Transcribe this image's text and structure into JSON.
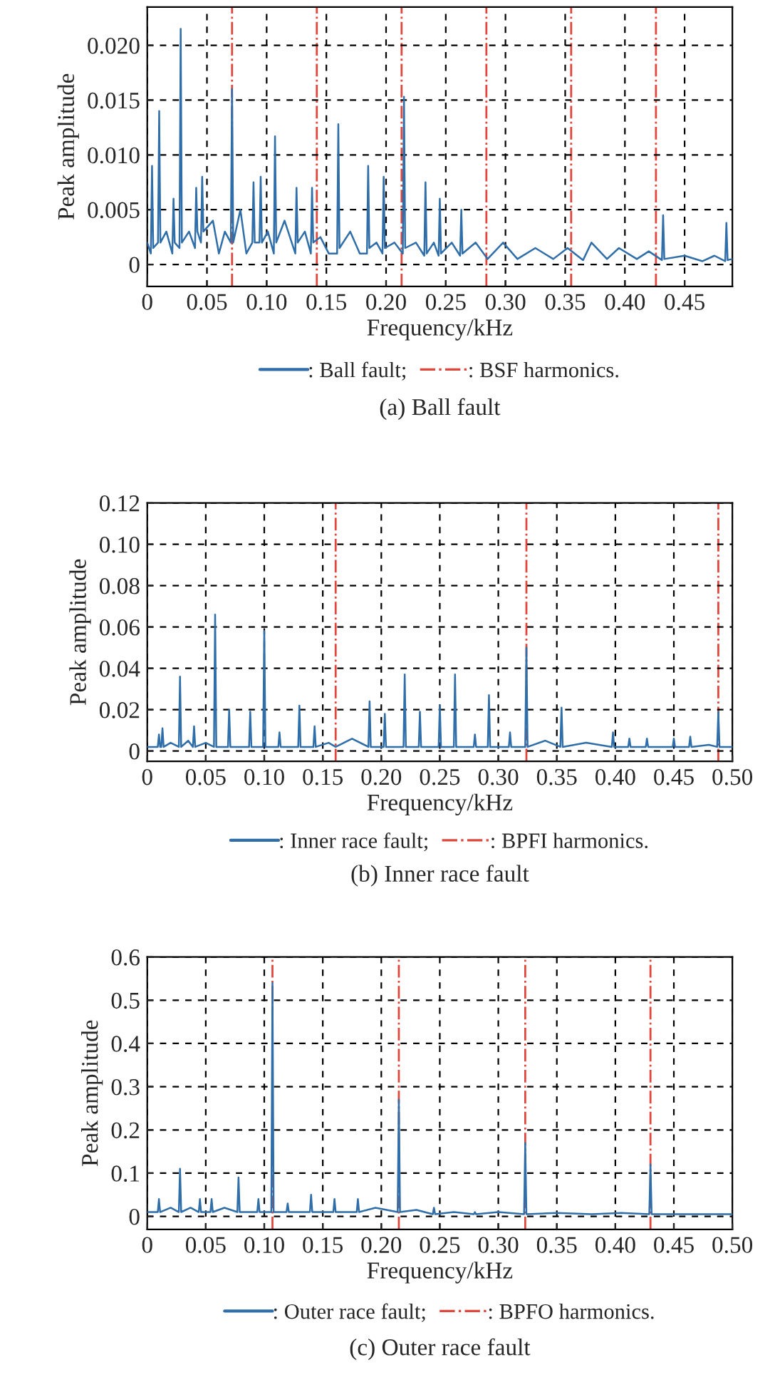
{
  "chart_data": [
    {
      "type": "line",
      "title": "(a) Ball fault",
      "xlabel": "Frequency/kHz",
      "ylabel": "Peak amplitude",
      "xlim": [
        0,
        0.49
      ],
      "ylim": [
        -0.002,
        0.0235
      ],
      "xticks": [
        0,
        0.05,
        {
          "value": 0.1,
          "label": "0.10"
        },
        0.15,
        {
          "value": 0.2,
          "label": "0.20"
        },
        0.25,
        {
          "value": 0.3,
          "label": "0.30"
        },
        0.35,
        {
          "value": 0.4,
          "label": "0.40"
        },
        0.45
      ],
      "yticks": [
        0,
        0.005,
        {
          "value": 0.01,
          "label": "0.010"
        },
        0.015,
        {
          "value": 0.02,
          "label": "0.020"
        }
      ],
      "grid": true,
      "legend": "bottom",
      "line_style": "solid",
      "series": [
        {
          "name": ": Ball fault;",
          "color": "#2f6ea8",
          "x": [
            0,
            0.003,
            0.004,
            0.005,
            0.009,
            0.01,
            0.011,
            0.016,
            0.021,
            0.022,
            0.023,
            0.027,
            0.028,
            0.029,
            0.035,
            0.04,
            0.041,
            0.042,
            0.045,
            0.046,
            0.047,
            0.055,
            0.06,
            0.065,
            0.07,
            0.071,
            0.072,
            0.078,
            0.083,
            0.088,
            0.089,
            0.09,
            0.094,
            0.095,
            0.096,
            0.101,
            0.106,
            0.107,
            0.108,
            0.115,
            0.124,
            0.125,
            0.126,
            0.132,
            0.137,
            0.138,
            0.139,
            0.145,
            0.152,
            0.159,
            0.16,
            0.161,
            0.17,
            0.178,
            0.184,
            0.185,
            0.186,
            0.192,
            0.197,
            0.198,
            0.199,
            0.207,
            0.214,
            0.215,
            0.216,
            0.225,
            0.232,
            0.233,
            0.234,
            0.24,
            0.244,
            0.245,
            0.246,
            0.255,
            0.262,
            0.263,
            0.264,
            0.275,
            0.285,
            0.298,
            0.31,
            0.325,
            0.34,
            0.352,
            0.365,
            0.372,
            0.385,
            0.395,
            0.41,
            0.42,
            0.431,
            0.432,
            0.433,
            0.45,
            0.465,
            0.475,
            0.484,
            0.485,
            0.486,
            0.49
          ],
          "values": [
            0.002,
            0.001,
            0.009,
            0.0015,
            0.002,
            0.014,
            0.002,
            0.003,
            0.001,
            0.006,
            0.002,
            0.0015,
            0.0215,
            0.002,
            0.003,
            0.0015,
            0.007,
            0.003,
            0.002,
            0.008,
            0.003,
            0.004,
            0.001,
            0.003,
            0.002,
            0.016,
            0.002,
            0.005,
            0.001,
            0.002,
            0.0075,
            0.002,
            0.002,
            0.008,
            0.002,
            0.003,
            0.001,
            0.0117,
            0.002,
            0.004,
            0.001,
            0.007,
            0.002,
            0.003,
            0.001,
            0.007,
            0.002,
            0.0025,
            0.001,
            0.001,
            0.0128,
            0.0015,
            0.003,
            0.001,
            0.001,
            0.009,
            0.0015,
            0.002,
            0.001,
            0.008,
            0.0015,
            0.002,
            0.001,
            0.0153,
            0.0015,
            0.002,
            0.0008,
            0.0075,
            0.001,
            0.002,
            0.0008,
            0.006,
            0.001,
            0.002,
            0.0008,
            0.005,
            0.001,
            0.002,
            0.0005,
            0.002,
            0.0005,
            0.0015,
            0.0005,
            0.0015,
            0.0004,
            0.002,
            0.0005,
            0.0015,
            0.0005,
            0.0012,
            0.0004,
            0.0045,
            0.0005,
            0.0008,
            0.0003,
            0.0008,
            0.0003,
            0.0038,
            0.0004,
            0.0005
          ]
        }
      ],
      "ref_lines": [
        {
          "axis": "x",
          "value": 0.071,
          "label": ": BSF harmonics.",
          "color": "#e0463c",
          "line_style": "dashdot"
        },
        {
          "axis": "x",
          "value": 0.142,
          "color": "#e0463c",
          "line_style": "dashdot"
        },
        {
          "axis": "x",
          "value": 0.213,
          "color": "#e0463c",
          "line_style": "dashdot"
        },
        {
          "axis": "x",
          "value": 0.284,
          "color": "#e0463c",
          "line_style": "dashdot"
        },
        {
          "axis": "x",
          "value": 0.355,
          "color": "#e0463c",
          "line_style": "dashdot"
        },
        {
          "axis": "x",
          "value": 0.426,
          "color": "#e0463c",
          "line_style": "dashdot"
        }
      ]
    },
    {
      "type": "line",
      "title": "(b) Inner race fault",
      "xlabel": "Frequency/kHz",
      "ylabel": "Peak amplitude",
      "xlim": [
        0,
        0.5
      ],
      "ylim": [
        -0.005,
        0.12
      ],
      "xticks": [
        0,
        0.05,
        {
          "value": 0.1,
          "label": "0.10"
        },
        0.15,
        {
          "value": 0.2,
          "label": "0.20"
        },
        0.25,
        {
          "value": 0.3,
          "label": "0.30"
        },
        0.35,
        {
          "value": 0.4,
          "label": "0.40"
        },
        0.45,
        {
          "value": 0.5,
          "label": "0.50"
        }
      ],
      "yticks": [
        0,
        0.02,
        0.04,
        0.06,
        0.08,
        {
          "value": 0.1,
          "label": "0.10"
        },
        0.12
      ],
      "grid": true,
      "legend": "bottom",
      "line_style": "solid",
      "series": [
        {
          "name": ": Inner race fault;",
          "color": "#2f6ea8",
          "x": [
            0,
            0.009,
            0.01,
            0.011,
            0.012,
            0.013,
            0.014,
            0.02,
            0.027,
            0.028,
            0.029,
            0.035,
            0.039,
            0.04,
            0.041,
            0.05,
            0.057,
            0.058,
            0.059,
            0.069,
            0.07,
            0.071,
            0.087,
            0.088,
            0.089,
            0.099,
            0.1,
            0.101,
            0.112,
            0.113,
            0.114,
            0.129,
            0.13,
            0.131,
            0.142,
            0.143,
            0.144,
            0.155,
            0.161,
            0.175,
            0.189,
            0.19,
            0.191,
            0.202,
            0.203,
            0.204,
            0.219,
            0.22,
            0.221,
            0.232,
            0.233,
            0.234,
            0.249,
            0.25,
            0.251,
            0.262,
            0.263,
            0.264,
            0.279,
            0.28,
            0.281,
            0.291,
            0.292,
            0.293,
            0.309,
            0.31,
            0.311,
            0.323,
            0.324,
            0.325,
            0.34,
            0.353,
            0.354,
            0.355,
            0.375,
            0.397,
            0.398,
            0.399,
            0.411,
            0.412,
            0.413,
            0.426,
            0.427,
            0.428,
            0.449,
            0.45,
            0.451,
            0.463,
            0.464,
            0.465,
            0.48,
            0.487,
            0.488,
            0.489,
            0.5
          ],
          "values": [
            0.002,
            0.002,
            0.008,
            0.002,
            0.002,
            0.011,
            0.002,
            0.004,
            0.002,
            0.036,
            0.002,
            0.005,
            0.002,
            0.012,
            0.002,
            0.004,
            0.002,
            0.066,
            0.002,
            0.002,
            0.02,
            0.002,
            0.002,
            0.019,
            0.002,
            0.002,
            0.058,
            0.002,
            0.002,
            0.009,
            0.002,
            0.002,
            0.022,
            0.002,
            0.002,
            0.012,
            0.002,
            0.004,
            0.002,
            0.006,
            0.002,
            0.024,
            0.002,
            0.002,
            0.018,
            0.002,
            0.002,
            0.037,
            0.002,
            0.002,
            0.019,
            0.002,
            0.002,
            0.022,
            0.002,
            0.002,
            0.037,
            0.002,
            0.002,
            0.008,
            0.002,
            0.002,
            0.027,
            0.002,
            0.002,
            0.009,
            0.002,
            0.002,
            0.05,
            0.002,
            0.005,
            0.002,
            0.021,
            0.002,
            0.004,
            0.002,
            0.009,
            0.002,
            0.002,
            0.006,
            0.002,
            0.002,
            0.006,
            0.002,
            0.002,
            0.006,
            0.002,
            0.002,
            0.007,
            0.002,
            0.003,
            0.002,
            0.019,
            0.002,
            0.002
          ]
        }
      ],
      "ref_lines": [
        {
          "axis": "x",
          "value": 0.161,
          "label": ": BPFI harmonics.",
          "color": "#e0463c",
          "line_style": "dashdot"
        },
        {
          "axis": "x",
          "value": 0.324,
          "color": "#e0463c",
          "line_style": "dashdot"
        },
        {
          "axis": "x",
          "value": 0.488,
          "color": "#e0463c",
          "line_style": "dashdot"
        }
      ]
    },
    {
      "type": "line",
      "title": "(c) Outer race fault",
      "xlabel": "Frequency/kHz",
      "ylabel": "Peak amplitude",
      "xlim": [
        0,
        0.5
      ],
      "ylim": [
        -0.03,
        0.6
      ],
      "xticks": [
        0,
        0.05,
        {
          "value": 0.1,
          "label": "0.10"
        },
        0.15,
        {
          "value": 0.2,
          "label": "0.20"
        },
        0.25,
        {
          "value": 0.3,
          "label": "0.30"
        },
        0.35,
        {
          "value": 0.4,
          "label": "0.40"
        },
        0.45,
        {
          "value": 0.5,
          "label": "0.50"
        }
      ],
      "yticks": [
        0,
        0.1,
        0.2,
        0.3,
        0.4,
        0.5,
        0.6
      ],
      "grid": true,
      "legend": "bottom",
      "line_style": "solid",
      "series": [
        {
          "name": ": Outer race fault;",
          "color": "#2f6ea8",
          "x": [
            0,
            0.009,
            0.01,
            0.011,
            0.02,
            0.027,
            0.028,
            0.029,
            0.037,
            0.044,
            0.045,
            0.046,
            0.054,
            0.055,
            0.056,
            0.066,
            0.077,
            0.078,
            0.079,
            0.094,
            0.095,
            0.096,
            0.106,
            0.107,
            0.108,
            0.119,
            0.12,
            0.121,
            0.139,
            0.14,
            0.141,
            0.159,
            0.16,
            0.161,
            0.179,
            0.18,
            0.181,
            0.195,
            0.214,
            0.215,
            0.216,
            0.23,
            0.244,
            0.245,
            0.246,
            0.262,
            0.279,
            0.28,
            0.281,
            0.3,
            0.322,
            0.323,
            0.324,
            0.35,
            0.38,
            0.405,
            0.429,
            0.43,
            0.431,
            0.46,
            0.5
          ],
          "values": [
            0.01,
            0.01,
            0.04,
            0.01,
            0.02,
            0.01,
            0.11,
            0.01,
            0.02,
            0.01,
            0.04,
            0.01,
            0.01,
            0.04,
            0.01,
            0.02,
            0.01,
            0.09,
            0.01,
            0.01,
            0.04,
            0.01,
            0.01,
            0.54,
            0.01,
            0.01,
            0.03,
            0.01,
            0.01,
            0.05,
            0.01,
            0.01,
            0.04,
            0.01,
            0.01,
            0.04,
            0.01,
            0.02,
            0.01,
            0.27,
            0.01,
            0.015,
            0.005,
            0.02,
            0.005,
            0.01,
            0.005,
            0.01,
            0.005,
            0.01,
            0.005,
            0.17,
            0.005,
            0.008,
            0.005,
            0.008,
            0.005,
            0.12,
            0.005,
            0.005,
            0.005
          ]
        }
      ],
      "ref_lines": [
        {
          "axis": "x",
          "value": 0.107,
          "label": ": BPFO harmonics.",
          "color": "#e0463c",
          "line_style": "dashdot"
        },
        {
          "axis": "x",
          "value": 0.215,
          "color": "#e0463c",
          "line_style": "dashdot"
        },
        {
          "axis": "x",
          "value": 0.323,
          "color": "#e0463c",
          "line_style": "dashdot"
        },
        {
          "axis": "x",
          "value": 0.43,
          "color": "#e0463c",
          "line_style": "dashdot"
        }
      ]
    }
  ]
}
